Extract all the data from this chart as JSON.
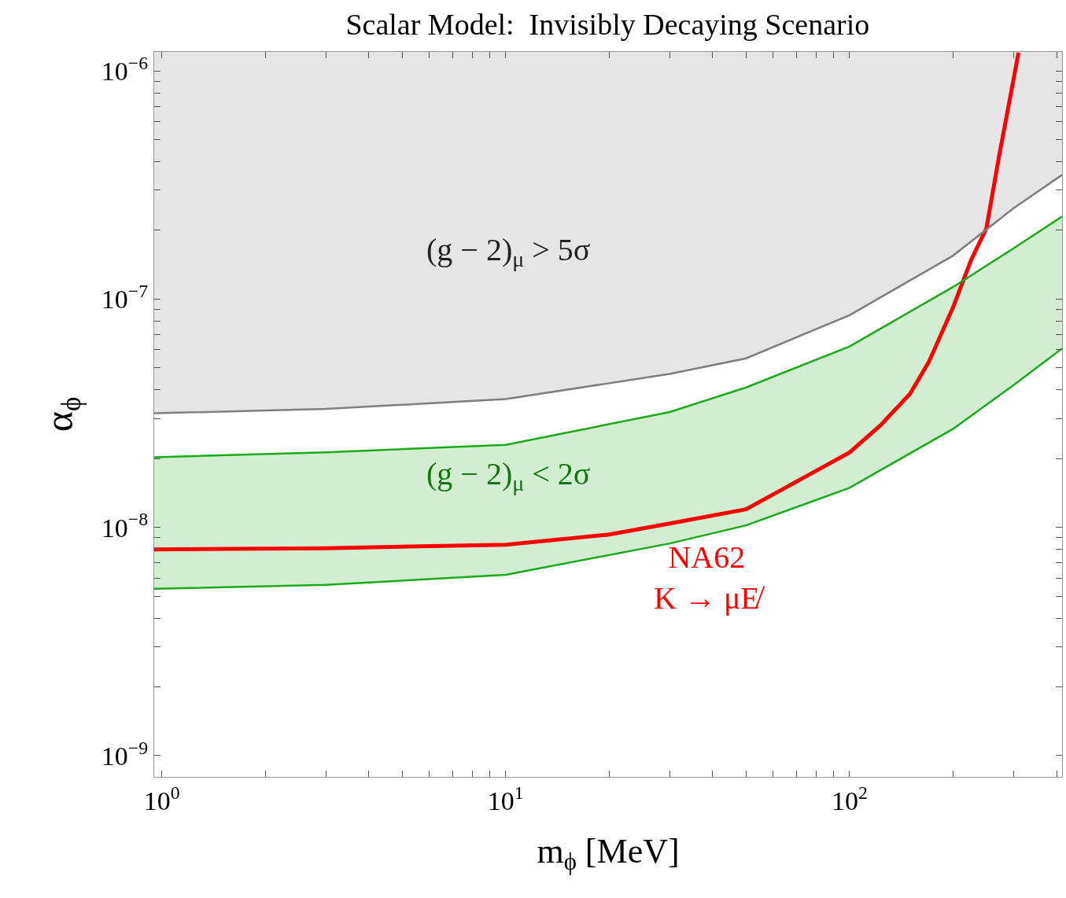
{
  "chart_data": {
    "type": "line",
    "title": "Scalar Model:  Invisibly Decaying Scenario",
    "xlabel": "m$_{ϕ}$ [MeV]",
    "ylabel": "α$_{ϕ}$",
    "log": "xy",
    "grid": false,
    "marker": "none",
    "line_style": "solid",
    "xlim": [
      0.95,
      415
    ],
    "ylim": [
      8.07e-10,
      1.21e-06
    ],
    "xticks": [
      {
        "value": 1,
        "label": "10$^{0}$"
      },
      {
        "value": 2,
        "label": null
      },
      {
        "value": 3,
        "label": null
      },
      {
        "value": 4,
        "label": null
      },
      {
        "value": 5,
        "label": null
      },
      {
        "value": 6,
        "label": null
      },
      {
        "value": 7,
        "label": null
      },
      {
        "value": 8,
        "label": null
      },
      {
        "value": 9,
        "label": null
      },
      {
        "value": 10,
        "label": "10$^{1}$"
      },
      {
        "value": 20,
        "label": null
      },
      {
        "value": 30,
        "label": null
      },
      {
        "value": 40,
        "label": null
      },
      {
        "value": 50,
        "label": null
      },
      {
        "value": 60,
        "label": null
      },
      {
        "value": 70,
        "label": null
      },
      {
        "value": 80,
        "label": null
      },
      {
        "value": 90,
        "label": null
      },
      {
        "value": 100,
        "label": "10$^{2}$"
      },
      {
        "value": 200,
        "label": null
      },
      {
        "value": 300,
        "label": null
      },
      {
        "value": 400,
        "label": null
      }
    ],
    "yticks": [
      {
        "value": 1e-09,
        "label": "10$^{−9}$"
      },
      {
        "value": 2e-09,
        "label": null
      },
      {
        "value": 3e-09,
        "label": null
      },
      {
        "value": 4e-09,
        "label": null
      },
      {
        "value": 5e-09,
        "label": null
      },
      {
        "value": 6e-09,
        "label": null
      },
      {
        "value": 7e-09,
        "label": null
      },
      {
        "value": 8e-09,
        "label": null
      },
      {
        "value": 9e-09,
        "label": null
      },
      {
        "value": 1e-08,
        "label": "10$^{−8}$"
      },
      {
        "value": 2e-08,
        "label": null
      },
      {
        "value": 3e-08,
        "label": null
      },
      {
        "value": 4e-08,
        "label": null
      },
      {
        "value": 5e-08,
        "label": null
      },
      {
        "value": 6e-08,
        "label": null
      },
      {
        "value": 7e-08,
        "label": null
      },
      {
        "value": 8e-08,
        "label": null
      },
      {
        "value": 9e-08,
        "label": null
      },
      {
        "value": 1e-07,
        "label": "10$^{−7}$"
      },
      {
        "value": 2e-07,
        "label": null
      },
      {
        "value": 3e-07,
        "label": null
      },
      {
        "value": 4e-07,
        "label": null
      },
      {
        "value": 5e-07,
        "label": null
      },
      {
        "value": 6e-07,
        "label": null
      },
      {
        "value": 7e-07,
        "label": null
      },
      {
        "value": 8e-07,
        "label": null
      },
      {
        "value": 9e-07,
        "label": null
      },
      {
        "value": 1e-06,
        "label": "10$^{−6}$"
      }
    ],
    "series": [
      {
        "type": "area",
        "color": "#7f7f7f",
        "x": [
          0.95,
          3,
          10,
          30,
          50,
          100,
          200,
          300,
          415
        ],
        "values": [
          null,
          null,
          null,
          null,
          null,
          null,
          null,
          null,
          null
        ],
        "lower": [
          3.16e-08,
          3.3e-08,
          3.65e-08,
          4.7e-08,
          5.5e-08,
          8.5e-08,
          1.55e-07,
          2.5e-07,
          3.5e-07
        ],
        "upper": [
          1.21e-06,
          1.21e-06,
          1.21e-06,
          1.21e-06,
          1.21e-06,
          1.21e-06,
          1.21e-06,
          1.21e-06,
          1.21e-06
        ]
      },
      {
        "type": "area",
        "color": "#1aaa1a",
        "x": [
          0.95,
          3,
          10,
          30,
          50,
          100,
          200,
          300,
          415
        ],
        "values": [
          null,
          null,
          null,
          null,
          null,
          null,
          null,
          null,
          null
        ],
        "lower": [
          5.38e-09,
          5.6e-09,
          6.2e-09,
          8.5e-09,
          1.02e-08,
          1.49e-08,
          2.7e-08,
          4.2e-08,
          6.07e-08
        ],
        "upper": [
          2.03e-08,
          2.13e-08,
          2.3e-08,
          3.2e-08,
          4.1e-08,
          6.2e-08,
          1.13e-07,
          1.67e-07,
          2.3e-07
        ]
      },
      {
        "color": "#ff0000",
        "x": [
          0.95,
          3,
          10,
          20,
          30,
          50,
          65,
          100,
          123,
          150,
          170,
          200,
          226,
          250,
          272,
          300,
          310
        ],
        "values": [
          8e-09,
          8.1e-09,
          8.4e-09,
          9.3e-09,
          1.04e-08,
          1.2e-08,
          1.49e-08,
          2.13e-08,
          2.8e-08,
          3.85e-08,
          5.3e-08,
          9.2e-08,
          1.49e-07,
          2.04e-07,
          4.2e-07,
          9.2e-07,
          1.2e-06
        ]
      },
      {
        "type": "line",
        "color": "#7f7f7f",
        "x": [
          0.95,
          3,
          10,
          30,
          50,
          100,
          200,
          300,
          415
        ],
        "values": [
          3.16e-08,
          3.3e-08,
          3.65e-08,
          4.7e-08,
          5.5e-08,
          8.5e-08,
          1.55e-07,
          2.5e-07,
          3.5e-07
        ]
      },
      {
        "type": "line",
        "color": "#1aaa1a",
        "x": [
          0.95,
          3,
          10,
          30,
          50,
          100,
          200,
          300,
          415
        ],
        "values": [
          2.03e-08,
          2.13e-08,
          2.3e-08,
          3.2e-08,
          4.1e-08,
          6.2e-08,
          1.13e-07,
          1.67e-07,
          2.3e-07
        ]
      },
      {
        "type": "line",
        "color": "#1aaa1a",
        "x": [
          0.95,
          3,
          10,
          30,
          50,
          100,
          200,
          300,
          415
        ],
        "values": [
          5.38e-09,
          5.6e-09,
          6.2e-09,
          8.5e-09,
          1.02e-08,
          1.49e-08,
          2.7e-08,
          4.2e-08,
          6.07e-08
        ]
      }
    ],
    "annotations": [
      "(g − 2)$_{μ}$ > 5σ",
      "(g − 2)$_{μ}$ < 2σ",
      "NA62\nK → μE̸"
    ]
  }
}
